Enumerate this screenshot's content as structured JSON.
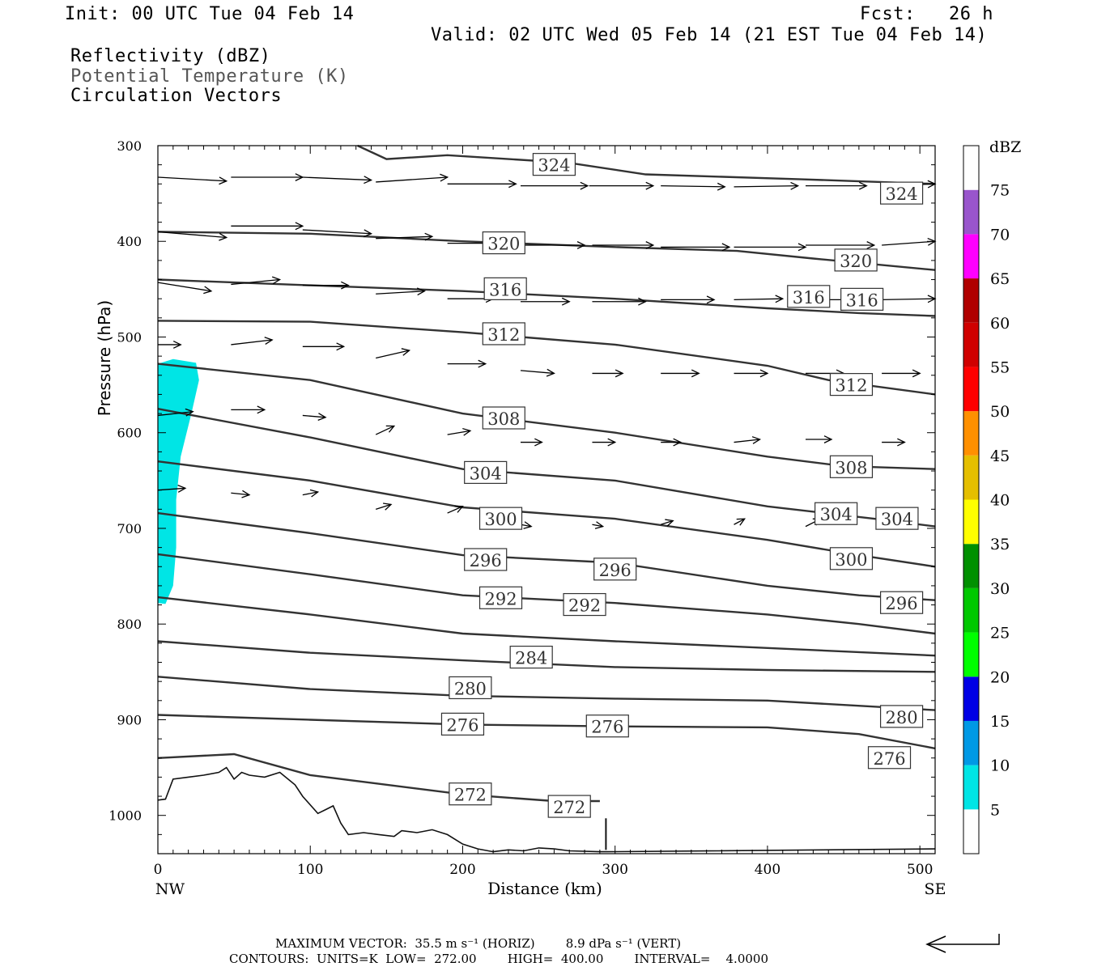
{
  "header": {
    "init": "Init: 00 UTC Tue 04 Feb 14",
    "fcst": "Fcst:   26 h",
    "valid": "Valid: 02 UTC Wed 05 Feb 14 (21 EST Tue 04 Feb 14)",
    "field1": "Reflectivity (dBZ)",
    "field2": "Potential Temperature (K)",
    "field3": "Circulation Vectors"
  },
  "footer": {
    "max_vector": "MAXIMUM VECTOR:  35.5 m s⁻¹ (HORIZ)        8.9 dPa s⁻¹ (VERT)",
    "contours": "CONTOURS:  UNITS=K  LOW=  272.00        HIGH=  400.00        INTERVAL=    4.0000"
  },
  "chart_data": {
    "type": "contour",
    "xlabel": "Distance (km)",
    "ylabel": "Pressure (hPa)",
    "x_end_labels": [
      "NW",
      "SE"
    ],
    "xlim": [
      0,
      510
    ],
    "ylim": [
      1040,
      300
    ],
    "x_ticks": [
      0,
      100,
      200,
      300,
      400,
      500
    ],
    "y_ticks": [
      300,
      400,
      500,
      600,
      700,
      800,
      900,
      1000
    ],
    "colorbar": {
      "unit": "dBZ",
      "levels": [
        5,
        10,
        15,
        20,
        25,
        30,
        35,
        40,
        45,
        50,
        55,
        60,
        65,
        70,
        75
      ],
      "colors": [
        "#00e5e5",
        "#0099e5",
        "#0000e5",
        "#00ff00",
        "#00c800",
        "#009000",
        "#ffff00",
        "#e5bf00",
        "#ff9000",
        "#ff0000",
        "#d00000",
        "#b00000",
        "#ff00ff",
        "#9955cc",
        "#ffffff"
      ]
    },
    "reflectivity_region": {
      "dbz": 5,
      "outline": [
        [
          0,
          528
        ],
        [
          10,
          523
        ],
        [
          25,
          527
        ],
        [
          27,
          545
        ],
        [
          22,
          580
        ],
        [
          15,
          625
        ],
        [
          12,
          670
        ],
        [
          12,
          720
        ],
        [
          10,
          760
        ],
        [
          5,
          779
        ],
        [
          0,
          778
        ]
      ]
    },
    "theta_contours": [
      {
        "theta": 324,
        "points": [
          [
            131,
            300
          ],
          [
            150,
            314
          ],
          [
            190,
            310
          ],
          [
            270,
            318
          ],
          [
            320,
            330
          ],
          [
            420,
            335
          ],
          [
            510,
            340
          ]
        ],
        "labels": [
          [
            260,
            320
          ],
          [
            488,
            350
          ]
        ]
      },
      {
        "theta": 320,
        "points": [
          [
            0,
            390
          ],
          [
            100,
            392
          ],
          [
            200,
            400
          ],
          [
            300,
            406
          ],
          [
            380,
            410
          ],
          [
            430,
            418
          ],
          [
            510,
            430
          ]
        ],
        "labels": [
          [
            227,
            402
          ],
          [
            458,
            420
          ]
        ]
      },
      {
        "theta": 316,
        "points": [
          [
            0,
            440
          ],
          [
            100,
            446
          ],
          [
            200,
            452
          ],
          [
            300,
            460
          ],
          [
            400,
            470
          ],
          [
            460,
            475
          ],
          [
            510,
            478
          ]
        ],
        "labels": [
          [
            228,
            450
          ],
          [
            427,
            458
          ],
          [
            462,
            461
          ]
        ]
      },
      {
        "theta": 312,
        "points": [
          [
            0,
            483
          ],
          [
            100,
            484
          ],
          [
            200,
            495
          ],
          [
            300,
            508
          ],
          [
            400,
            530
          ],
          [
            440,
            545
          ],
          [
            510,
            560
          ]
        ],
        "labels": [
          [
            227,
            497
          ],
          [
            455,
            550
          ]
        ]
      },
      {
        "theta": 308,
        "points": [
          [
            0,
            528
          ],
          [
            100,
            545
          ],
          [
            200,
            580
          ],
          [
            300,
            600
          ],
          [
            400,
            625
          ],
          [
            450,
            635
          ],
          [
            510,
            638
          ]
        ],
        "labels": [
          [
            227,
            585
          ],
          [
            455,
            636
          ]
        ]
      },
      {
        "theta": 304,
        "points": [
          [
            0,
            575
          ],
          [
            100,
            605
          ],
          [
            200,
            638
          ],
          [
            300,
            650
          ],
          [
            400,
            677
          ],
          [
            470,
            690
          ],
          [
            510,
            698
          ]
        ],
        "labels": [
          [
            215,
            642
          ],
          [
            445,
            685
          ],
          [
            485,
            690
          ]
        ]
      },
      {
        "theta": 300,
        "points": [
          [
            0,
            630
          ],
          [
            100,
            650
          ],
          [
            200,
            678
          ],
          [
            300,
            690
          ],
          [
            400,
            712
          ],
          [
            460,
            728
          ],
          [
            510,
            740
          ]
        ],
        "labels": [
          [
            225,
            690
          ],
          [
            455,
            732
          ]
        ]
      },
      {
        "theta": 296,
        "points": [
          [
            0,
            684
          ],
          [
            100,
            705
          ],
          [
            200,
            728
          ],
          [
            300,
            736
          ],
          [
            400,
            760
          ],
          [
            460,
            770
          ],
          [
            510,
            775
          ]
        ],
        "labels": [
          [
            215,
            733
          ],
          [
            300,
            743
          ],
          [
            488,
            778
          ]
        ]
      },
      {
        "theta": 292,
        "points": [
          [
            0,
            727
          ],
          [
            100,
            748
          ],
          [
            200,
            770
          ],
          [
            300,
            778
          ],
          [
            400,
            790
          ],
          [
            460,
            800
          ],
          [
            510,
            810
          ]
        ],
        "labels": [
          [
            225,
            773
          ],
          [
            280,
            780
          ]
        ]
      },
      {
        "theta": 288,
        "points": [
          [
            0,
            772
          ],
          [
            100,
            790
          ],
          [
            200,
            810
          ],
          [
            300,
            818
          ],
          [
            400,
            825
          ],
          [
            510,
            833
          ]
        ],
        "labels": []
      },
      {
        "theta": 284,
        "points": [
          [
            0,
            818
          ],
          [
            100,
            830
          ],
          [
            200,
            838
          ],
          [
            300,
            845
          ],
          [
            400,
            848
          ],
          [
            510,
            850
          ]
        ],
        "labels": [
          [
            245,
            835
          ]
        ]
      },
      {
        "theta": 280,
        "points": [
          [
            0,
            855
          ],
          [
            100,
            868
          ],
          [
            200,
            875
          ],
          [
            300,
            878
          ],
          [
            400,
            880
          ],
          [
            510,
            890
          ]
        ],
        "labels": [
          [
            205,
            867
          ],
          [
            488,
            897
          ]
        ]
      },
      {
        "theta": 276,
        "points": [
          [
            0,
            895
          ],
          [
            100,
            900
          ],
          [
            200,
            905
          ],
          [
            300,
            907
          ],
          [
            400,
            908
          ],
          [
            460,
            915
          ],
          [
            510,
            930
          ]
        ],
        "labels": [
          [
            200,
            905
          ],
          [
            295,
            907
          ],
          [
            480,
            940
          ]
        ]
      },
      {
        "theta": 272,
        "points": [
          [
            0,
            940
          ],
          [
            50,
            936
          ],
          [
            100,
            958
          ],
          [
            200,
            978
          ],
          [
            260,
            985
          ],
          [
            290,
            985
          ]
        ],
        "labels": [
          [
            205,
            978
          ],
          [
            270,
            991
          ]
        ]
      }
    ],
    "terrain": {
      "points": [
        [
          0,
          984
        ],
        [
          5,
          983
        ],
        [
          10,
          962
        ],
        [
          20,
          960
        ],
        [
          30,
          958
        ],
        [
          40,
          955
        ],
        [
          45,
          950
        ],
        [
          50,
          962
        ],
        [
          55,
          955
        ],
        [
          60,
          958
        ],
        [
          70,
          960
        ],
        [
          80,
          955
        ],
        [
          90,
          968
        ],
        [
          95,
          980
        ],
        [
          105,
          998
        ],
        [
          110,
          994
        ],
        [
          115,
          990
        ],
        [
          120,
          1008
        ],
        [
          125,
          1020
        ],
        [
          135,
          1018
        ],
        [
          145,
          1020
        ],
        [
          155,
          1022
        ],
        [
          160,
          1016
        ],
        [
          170,
          1018
        ],
        [
          180,
          1015
        ],
        [
          190,
          1020
        ],
        [
          200,
          1030
        ],
        [
          210,
          1035
        ],
        [
          220,
          1038
        ],
        [
          230,
          1036
        ],
        [
          240,
          1037
        ],
        [
          250,
          1034
        ],
        [
          260,
          1035
        ],
        [
          270,
          1037
        ],
        [
          290,
          1038
        ],
        [
          295,
          1038
        ],
        [
          510,
          1035
        ]
      ],
      "line": [
        [
          294,
          1036
        ],
        [
          294,
          1003
        ]
      ]
    },
    "vectors": {
      "max_horizontal": "35.5 m s-1",
      "max_vertical": "8.9 dPa s-1",
      "arrows": [
        [
          0,
          333,
          45,
          337
        ],
        [
          48,
          333,
          95,
          333
        ],
        [
          95,
          333,
          140,
          336
        ],
        [
          143,
          338,
          190,
          333
        ],
        [
          190,
          340,
          235,
          340
        ],
        [
          238,
          342,
          282,
          342
        ],
        [
          283,
          342,
          325,
          342
        ],
        [
          330,
          342,
          372,
          343
        ],
        [
          378,
          343,
          420,
          342
        ],
        [
          425,
          342,
          465,
          342
        ],
        [
          475,
          342,
          510,
          340
        ],
        [
          0,
          390,
          45,
          396
        ],
        [
          48,
          384,
          95,
          384
        ],
        [
          95,
          388,
          140,
          392
        ],
        [
          143,
          397,
          180,
          395
        ],
        [
          190,
          402,
          235,
          402
        ],
        [
          238,
          404,
          280,
          404
        ],
        [
          285,
          404,
          325,
          404
        ],
        [
          330,
          406,
          375,
          406
        ],
        [
          378,
          406,
          425,
          406
        ],
        [
          425,
          404,
          470,
          404
        ],
        [
          475,
          404,
          510,
          400
        ],
        [
          0,
          443,
          35,
          452
        ],
        [
          48,
          445,
          80,
          440
        ],
        [
          95,
          446,
          125,
          446
        ],
        [
          143,
          455,
          175,
          452
        ],
        [
          190,
          460,
          220,
          460
        ],
        [
          238,
          463,
          270,
          463
        ],
        [
          285,
          463,
          320,
          463
        ],
        [
          330,
          461,
          365,
          461
        ],
        [
          378,
          461,
          410,
          460
        ],
        [
          425,
          461,
          455,
          461
        ],
        [
          475,
          461,
          510,
          460
        ],
        [
          0,
          508,
          15,
          508
        ],
        [
          48,
          508,
          75,
          503
        ],
        [
          95,
          510,
          122,
          510
        ],
        [
          143,
          522,
          165,
          514
        ],
        [
          190,
          528,
          215,
          528
        ],
        [
          238,
          535,
          260,
          538
        ],
        [
          285,
          538,
          305,
          538
        ],
        [
          330,
          538,
          355,
          538
        ],
        [
          378,
          538,
          400,
          538
        ],
        [
          425,
          538,
          450,
          538
        ],
        [
          475,
          538,
          500,
          538
        ],
        [
          0,
          582,
          23,
          578
        ],
        [
          48,
          576,
          70,
          576
        ],
        [
          95,
          582,
          110,
          584
        ],
        [
          143,
          602,
          155,
          593
        ],
        [
          190,
          602,
          205,
          598
        ],
        [
          238,
          610,
          252,
          610
        ],
        [
          285,
          610,
          300,
          610
        ],
        [
          330,
          610,
          343,
          610
        ],
        [
          378,
          610,
          395,
          607
        ],
        [
          425,
          607,
          442,
          607
        ],
        [
          475,
          610,
          490,
          610
        ],
        [
          0,
          660,
          18,
          658
        ],
        [
          48,
          663,
          60,
          665
        ],
        [
          95,
          665,
          105,
          662
        ],
        [
          143,
          680,
          153,
          675
        ],
        [
          190,
          684,
          200,
          677
        ],
        [
          238,
          696,
          245,
          698
        ],
        [
          285,
          696,
          292,
          698
        ],
        [
          330,
          696,
          338,
          692
        ],
        [
          378,
          696,
          385,
          690
        ],
        [
          425,
          698,
          435,
          690
        ],
        [
          475,
          698,
          485,
          696
        ]
      ]
    }
  }
}
